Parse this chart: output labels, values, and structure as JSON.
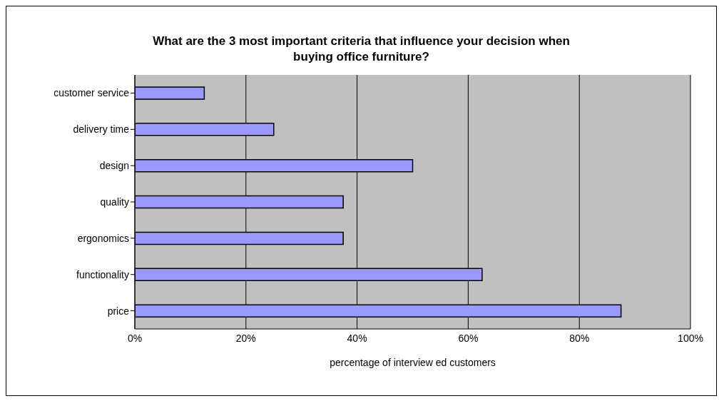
{
  "chart_data": {
    "type": "bar",
    "orientation": "horizontal",
    "title": "What are the 3 most important criteria that influence your decision when buying office furniture?",
    "xlabel": "percentage of interview ed customers",
    "categories": [
      "customer service",
      "delivery time",
      "design",
      "quality",
      "ergonomics",
      "functionality",
      "price"
    ],
    "values": [
      12.5,
      25,
      50,
      37.5,
      37.5,
      62.5,
      87.5
    ],
    "color": "#9999ff",
    "xlim": [
      0,
      100
    ],
    "xticks": [
      {
        "value": 0,
        "label": "0%"
      },
      {
        "value": 20,
        "label": "20%"
      },
      {
        "value": 40,
        "label": "40%"
      },
      {
        "value": 60,
        "label": "60%"
      },
      {
        "value": 80,
        "label": "80%"
      },
      {
        "value": 100,
        "label": "100%"
      }
    ],
    "grid": "x"
  }
}
